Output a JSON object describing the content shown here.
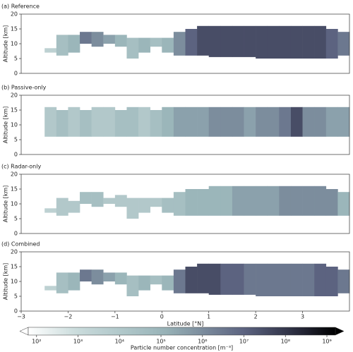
{
  "chart_data": [
    {
      "type": "range",
      "title": "(a) Reference",
      "ylabel": "Altitude [km]",
      "x": [
        -2.5,
        -2.25,
        -2,
        -1.75,
        -1.5,
        -1.25,
        -1,
        -0.75,
        -0.5,
        -0.25,
        0,
        0.25,
        0.5,
        0.75,
        1,
        1.25,
        1.5,
        1.75,
        2,
        2.25,
        2.5,
        2.75,
        3,
        3.25,
        3.5,
        3.75
      ],
      "base": [
        7,
        6,
        7,
        10,
        9,
        10,
        9,
        5,
        7,
        9,
        7,
        6,
        6,
        6,
        5.5,
        5.5,
        5.5,
        5.5,
        5,
        5,
        5,
        5,
        5,
        5,
        5,
        6
      ],
      "top": [
        8.5,
        13,
        13,
        14,
        14,
        13,
        13,
        12,
        12,
        12,
        12,
        14,
        15,
        16,
        16,
        16,
        16,
        16,
        16,
        16,
        16,
        16,
        16,
        16,
        15,
        14
      ],
      "values": [
        3.5,
        4.5,
        5,
        6.5,
        6,
        5.5,
        5,
        4.5,
        5,
        4.5,
        5,
        6,
        7,
        7.5,
        7.5,
        7.5,
        7.5,
        7.5,
        7.5,
        7.5,
        7.5,
        7.5,
        7.5,
        7.5,
        7,
        6.5
      ],
      "xlim": [
        -3,
        4
      ],
      "ylim": [
        0,
        20
      ],
      "yticks": [
        0,
        5,
        10,
        15,
        20
      ]
    },
    {
      "type": "range",
      "title": "(b) Passive-only",
      "ylabel": "Altitude [km]",
      "x": [
        -2.5,
        -2.25,
        -2,
        -1.75,
        -1.5,
        -1.25,
        -1,
        -0.75,
        -0.5,
        -0.25,
        0,
        0.25,
        0.5,
        0.75,
        1,
        1.25,
        1.5,
        1.75,
        2,
        2.25,
        2.5,
        2.75,
        3,
        3.25,
        3.5,
        3.75
      ],
      "base": [
        6,
        6,
        6,
        6,
        6,
        6,
        6,
        6,
        6,
        6,
        6,
        6,
        6,
        6,
        6,
        6,
        6,
        6,
        6,
        6,
        6,
        6,
        6,
        6,
        6,
        6
      ],
      "top": [
        16,
        15,
        16,
        15,
        16,
        16,
        15,
        16,
        16,
        15,
        16,
        16,
        16,
        16,
        16,
        16,
        16,
        16,
        16,
        16,
        16,
        16,
        16,
        16,
        16,
        16
      ],
      "values": [
        4,
        4.5,
        4,
        4.5,
        4,
        4,
        4.5,
        4.5,
        4,
        4.5,
        5,
        5.5,
        5.5,
        5.5,
        6,
        6,
        6,
        5.5,
        6,
        6,
        6.5,
        7.5,
        6,
        6,
        5.5,
        5.5
      ],
      "xlim": [
        -3,
        4
      ],
      "ylim": [
        0,
        20
      ],
      "yticks": [
        0,
        5,
        10,
        15,
        20
      ]
    },
    {
      "type": "range",
      "title": "(c) Radar-only",
      "ylabel": "Altitude [km]",
      "x": [
        -2.5,
        -2.25,
        -2,
        -1.75,
        -1.5,
        -1.25,
        -1,
        -0.75,
        -0.5,
        -0.25,
        0,
        0.25,
        0.5,
        0.75,
        1,
        1.25,
        1.5,
        1.75,
        2,
        2.25,
        2.5,
        2.75,
        3,
        3.25,
        3.5,
        3.75
      ],
      "base": [
        7,
        6,
        7,
        10,
        9,
        10,
        9,
        5,
        7,
        9,
        7,
        6,
        6,
        6,
        6,
        6,
        6,
        6,
        6,
        6,
        6,
        6,
        6,
        6,
        6,
        6
      ],
      "top": [
        8.5,
        12,
        11,
        14,
        14,
        12,
        13,
        12,
        12,
        12,
        12,
        14,
        15,
        15,
        16,
        16,
        16,
        16,
        16,
        16,
        16,
        16,
        16,
        16,
        15,
        14
      ],
      "values": [
        3.5,
        4,
        4,
        4.5,
        4.5,
        4,
        4,
        4,
        4,
        4,
        4.5,
        4.5,
        5,
        5,
        5,
        5,
        5.5,
        5.5,
        5.5,
        5.5,
        6,
        6,
        6,
        6,
        6,
        5
      ],
      "xlim": [
        -3,
        4
      ],
      "ylim": [
        0,
        20
      ],
      "yticks": [
        0,
        5,
        10,
        15,
        20
      ]
    },
    {
      "type": "range",
      "title": "(d) Combined",
      "ylabel": "Altitude [km]",
      "xlabel": "Latitude [°N]",
      "x": [
        -2.5,
        -2.25,
        -2,
        -1.75,
        -1.5,
        -1.25,
        -1,
        -0.75,
        -0.5,
        -0.25,
        0,
        0.25,
        0.5,
        0.75,
        1,
        1.25,
        1.5,
        1.75,
        2,
        2.25,
        2.5,
        2.75,
        3,
        3.25,
        3.5,
        3.75
      ],
      "base": [
        7,
        6,
        7,
        10,
        9,
        10,
        9,
        5,
        7,
        9,
        7,
        6,
        6,
        6,
        5.5,
        5.5,
        5.5,
        5.5,
        5,
        5,
        5,
        5,
        5,
        5,
        5,
        6
      ],
      "top": [
        8.5,
        13,
        13,
        14,
        14,
        13,
        13,
        12,
        12,
        12,
        12,
        14,
        15,
        16,
        16,
        16,
        16,
        16,
        16,
        16,
        16,
        16,
        16,
        16,
        15,
        14
      ],
      "values": [
        3.5,
        4.5,
        5,
        6.5,
        6,
        5.5,
        5,
        4.5,
        5,
        4.5,
        5,
        6.5,
        7.5,
        7.5,
        7.5,
        7,
        7,
        6.5,
        6.5,
        6.5,
        6.5,
        6.5,
        6.5,
        7,
        7,
        6.5
      ],
      "xlim": [
        -3,
        4
      ],
      "ylim": [
        0,
        20
      ],
      "yticks": [
        0,
        5,
        10,
        15,
        20
      ],
      "xticks": [
        {
          "value": -3,
          "label": "−3"
        },
        {
          "value": -2,
          "label": "−2"
        },
        {
          "value": -1,
          "label": "−1"
        },
        0,
        1,
        2,
        3
      ]
    },
    {
      "type": "colorbar",
      "label": "Particle number concentration [m⁻³]",
      "log": true,
      "lim": [
        63,
        1600000000
      ],
      "ticks": [
        {
          "value": 100,
          "label": "10²"
        },
        {
          "value": 1000,
          "label": "10³"
        },
        {
          "value": 10000,
          "label": "10⁴"
        },
        {
          "value": 100000,
          "label": "10⁵"
        },
        {
          "value": 1000000,
          "label": "10⁶"
        },
        {
          "value": 10000000,
          "label": "10⁷"
        },
        {
          "value": 100000000,
          "label": "10⁸"
        },
        {
          "value": 1000000000,
          "label": "10⁹"
        }
      ]
    }
  ]
}
